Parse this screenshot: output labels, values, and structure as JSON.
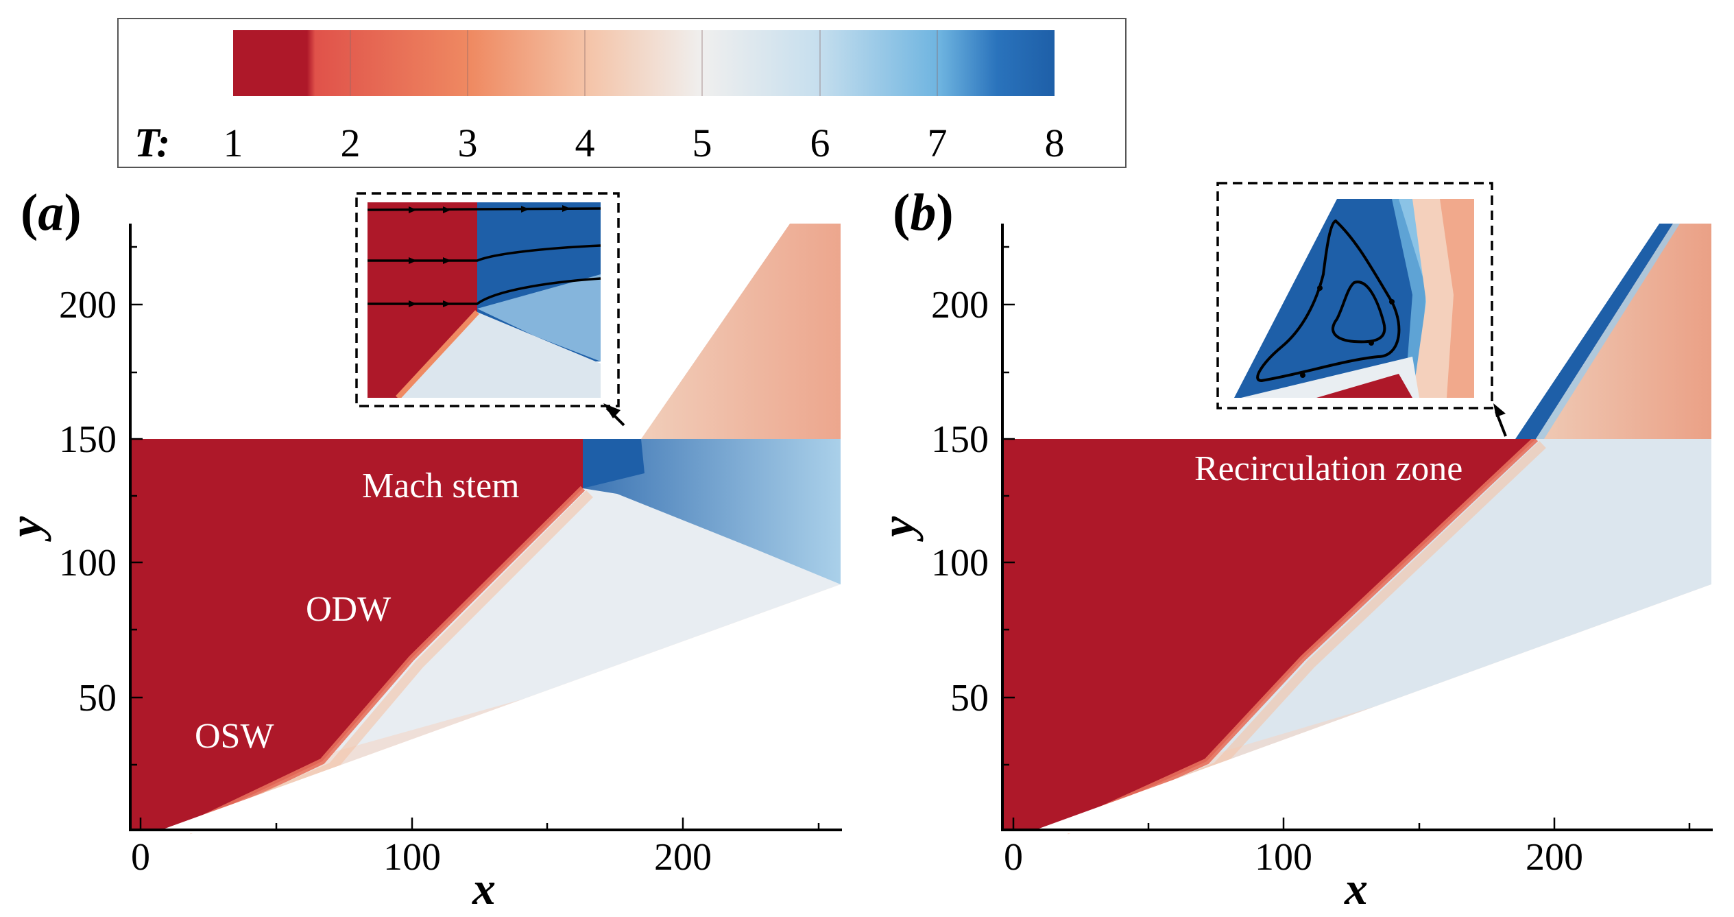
{
  "colorbar": {
    "label": "T:",
    "ticks": [
      "1",
      "2",
      "3",
      "4",
      "5",
      "6",
      "7",
      "8"
    ],
    "min": 1,
    "max": 8
  },
  "colors": {
    "hot": "#AE1829",
    "cold": "#1E5FA8",
    "neutral": "#F2F2F2",
    "stops": [
      "#AE1829",
      "#E0524A",
      "#EF8A62",
      "#F4C3A7",
      "#F0EFEE",
      "#C7DFEE",
      "#6EB4E0",
      "#1E5FA8"
    ]
  },
  "chart_data": [
    {
      "type": "heatmap",
      "panel": "(a)",
      "panel_letter": "a",
      "variable": "T",
      "xlabel": "x",
      "ylabel": "y",
      "xlim": [
        -5,
        260
      ],
      "ylim": [
        5,
        230
      ],
      "xticks": [
        "0",
        "100",
        "200"
      ],
      "yticks": [
        "50",
        "100",
        "150",
        "200"
      ],
      "annotations": [
        "Mach stem",
        "ODW",
        "OSW"
      ],
      "inset": "zoom near triple point, x≈165–185, y≈130–150, with streamlines"
    },
    {
      "type": "heatmap",
      "panel": "(b)",
      "panel_letter": "b",
      "variable": "T",
      "xlabel": "x",
      "ylabel": "y",
      "xlim": [
        -5,
        260
      ],
      "ylim": [
        5,
        230
      ],
      "xticks": [
        "0",
        "100",
        "200"
      ],
      "yticks": [
        "50",
        "100",
        "150",
        "200"
      ],
      "annotations": [
        "Recirculation zone"
      ],
      "inset": "zoom near x≈190–200, y≈150, closed streamlines"
    }
  ]
}
